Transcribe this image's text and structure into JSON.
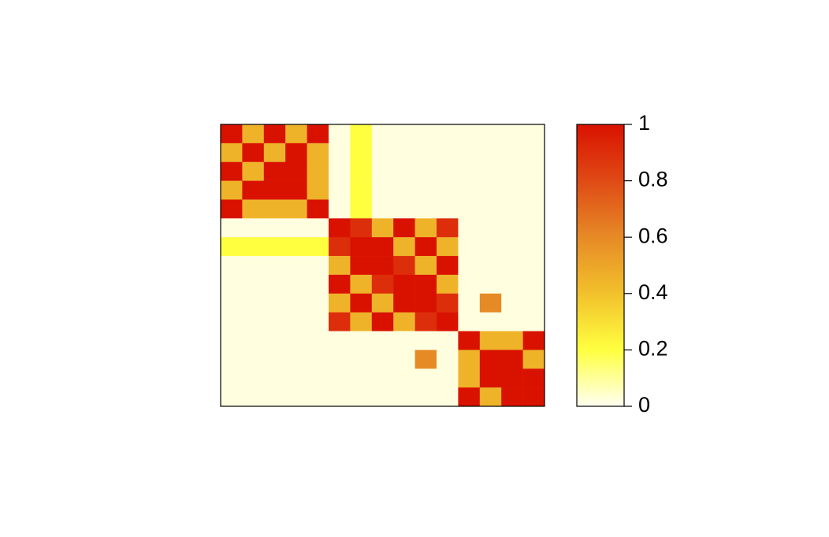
{
  "chart_data": {
    "type": "heatmap",
    "matrix": [
      [
        1,
        0.45,
        1,
        0.45,
        1,
        0.02,
        0.2,
        0.02,
        0.02,
        0.02,
        0.02,
        0.02,
        0.02,
        0.02,
        0.02
      ],
      [
        0.45,
        1,
        0.45,
        1,
        0.45,
        0.02,
        0.2,
        0.02,
        0.02,
        0.02,
        0.02,
        0.02,
        0.02,
        0.02,
        0.02
      ],
      [
        1,
        0.45,
        1,
        1,
        0.45,
        0.02,
        0.2,
        0.02,
        0.02,
        0.02,
        0.02,
        0.02,
        0.02,
        0.02,
        0.02
      ],
      [
        0.45,
        1,
        1,
        1,
        0.45,
        0.02,
        0.2,
        0.02,
        0.02,
        0.02,
        0.02,
        0.02,
        0.02,
        0.02,
        0.02
      ],
      [
        1,
        0.45,
        0.45,
        0.45,
        1,
        0.02,
        0.2,
        0.02,
        0.02,
        0.02,
        0.02,
        0.02,
        0.02,
        0.02,
        0.02
      ],
      [
        0.02,
        0.02,
        0.02,
        0.02,
        0.02,
        1,
        0.9,
        0.45,
        1,
        0.45,
        0.9,
        0.02,
        0.02,
        0.02,
        0.02
      ],
      [
        0.2,
        0.2,
        0.2,
        0.2,
        0.2,
        0.9,
        1,
        1,
        0.45,
        1,
        0.45,
        0.02,
        0.02,
        0.02,
        0.02
      ],
      [
        0.02,
        0.02,
        0.02,
        0.02,
        0.02,
        0.45,
        1,
        1,
        0.9,
        0.45,
        1,
        0.02,
        0.02,
        0.02,
        0.02
      ],
      [
        0.02,
        0.02,
        0.02,
        0.02,
        0.02,
        1,
        0.45,
        0.9,
        1,
        1,
        0.45,
        0.02,
        0.02,
        0.02,
        0.02
      ],
      [
        0.02,
        0.02,
        0.02,
        0.02,
        0.02,
        0.45,
        1,
        0.45,
        1,
        1,
        0.9,
        0.02,
        0.6,
        0.02,
        0.02
      ],
      [
        0.02,
        0.02,
        0.02,
        0.02,
        0.02,
        0.9,
        0.45,
        1,
        0.45,
        0.9,
        1,
        0.02,
        0.02,
        0.02,
        0.02
      ],
      [
        0.02,
        0.02,
        0.02,
        0.02,
        0.02,
        0.02,
        0.02,
        0.02,
        0.02,
        0.02,
        0.02,
        1,
        0.45,
        0.45,
        1
      ],
      [
        0.02,
        0.02,
        0.02,
        0.02,
        0.02,
        0.02,
        0.02,
        0.02,
        0.02,
        0.6,
        0.02,
        0.45,
        1,
        1,
        0.45
      ],
      [
        0.02,
        0.02,
        0.02,
        0.02,
        0.02,
        0.02,
        0.02,
        0.02,
        0.02,
        0.02,
        0.02,
        0.45,
        1,
        1,
        1
      ],
      [
        0.02,
        0.02,
        0.02,
        0.02,
        0.02,
        0.02,
        0.02,
        0.02,
        0.02,
        0.02,
        0.02,
        1,
        0.45,
        1,
        1
      ]
    ],
    "clim": [
      0,
      1
    ],
    "cticks": [
      0,
      0.2,
      0.4,
      0.6,
      0.8,
      1
    ],
    "colorscale": [
      "#fffff2",
      "#ffff40",
      "#f2c12b",
      "#e68a26",
      "#df4a15",
      "#d91200"
    ]
  }
}
